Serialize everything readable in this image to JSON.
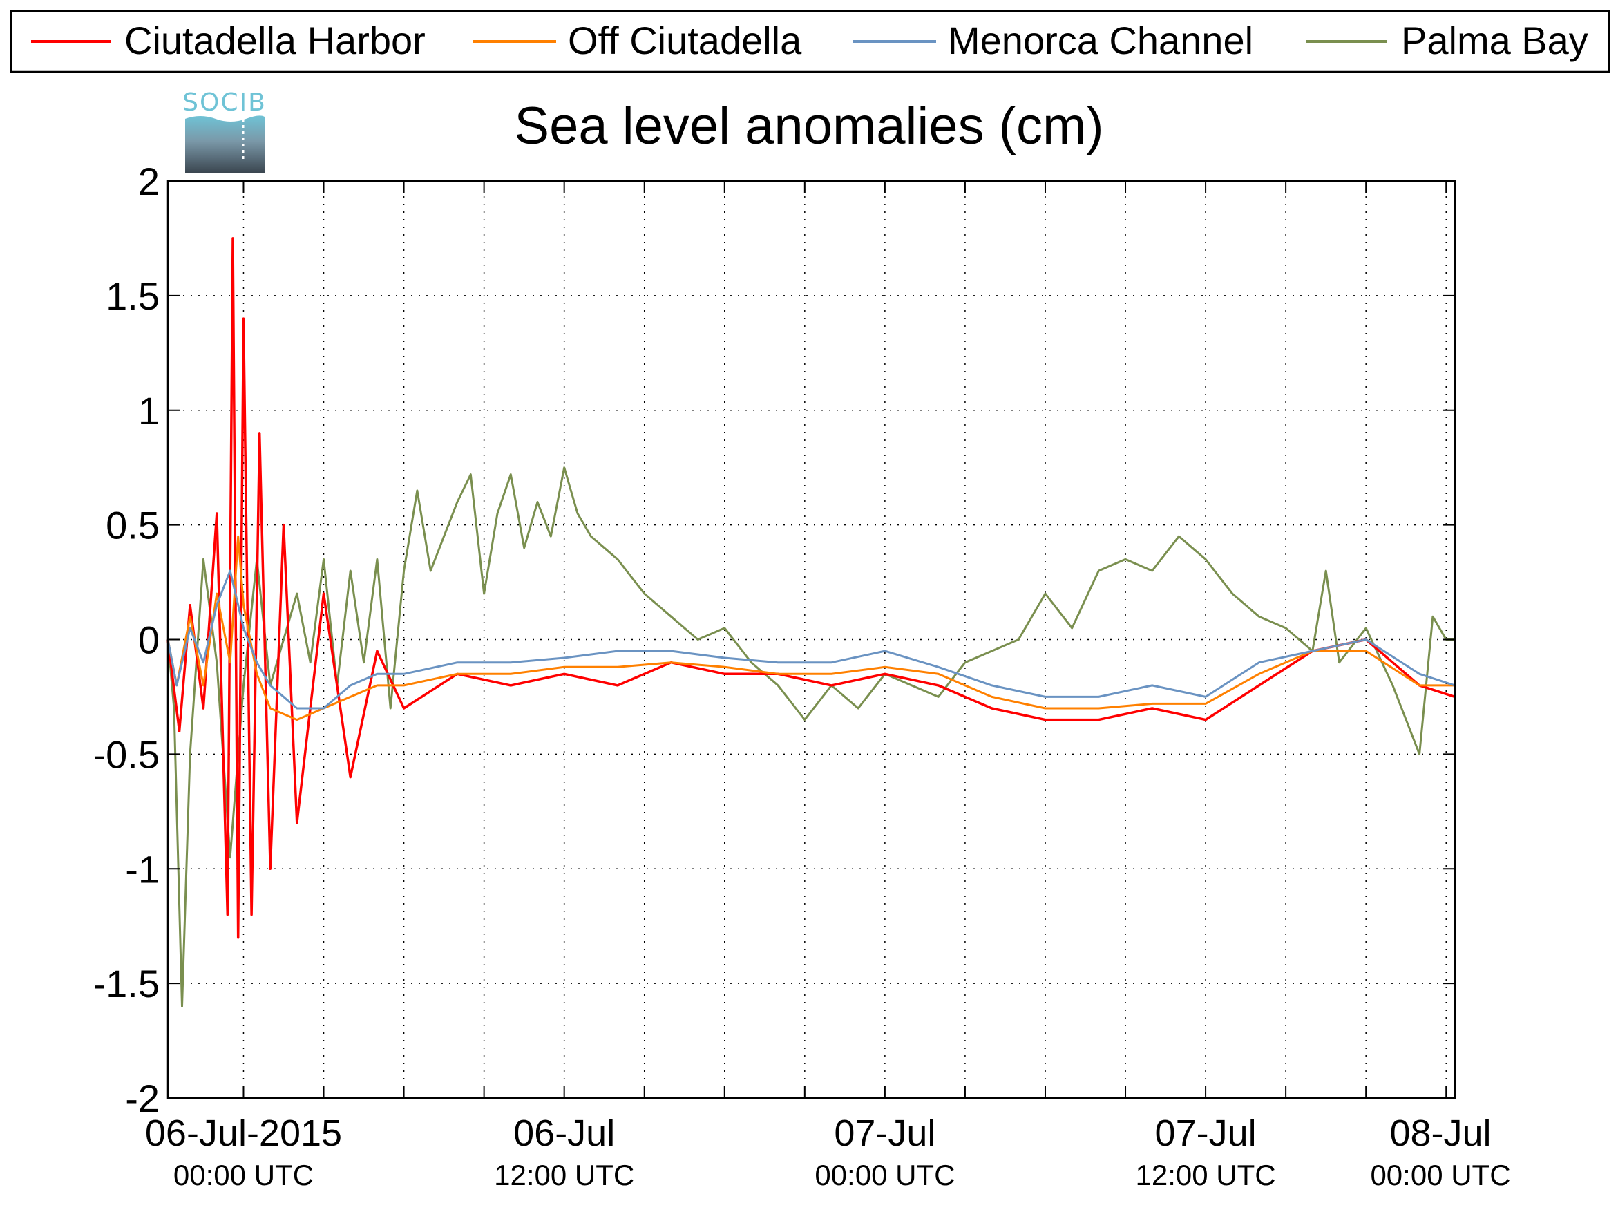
{
  "chart_data": {
    "type": "line",
    "title": "Sea level anomalies (cm)",
    "xlabel": "",
    "ylabel": "",
    "logo_text": "SOCIB",
    "x_unit": "hours since 06-Jul-2015 00:00 UTC",
    "xlim": [
      -2.83,
      45.33
    ],
    "ylim": [
      -2,
      2
    ],
    "grid": true,
    "legend_position": "top",
    "y_ticks": [
      2,
      1.5,
      1,
      0.5,
      0,
      -0.5,
      -1,
      -1.5,
      -2
    ],
    "y_tick_labels": [
      "2",
      "1.5",
      "1",
      "0.5",
      "0",
      "-0.5",
      "-1",
      "-1.5",
      "-2"
    ],
    "x_ticks_minor_hours": [
      0,
      3,
      6,
      9,
      12,
      15,
      18,
      21,
      24,
      27,
      30,
      33,
      36,
      39,
      42,
      45
    ],
    "x_tick_labels": [
      {
        "hour": 0,
        "line1": "06-Jul-2015",
        "line2": "00:00 UTC"
      },
      {
        "hour": 12,
        "line1": "06-Jul",
        "line2": "12:00 UTC"
      },
      {
        "hour": 24,
        "line1": "07-Jul",
        "line2": "00:00 UTC"
      },
      {
        "hour": 36,
        "line1": "07-Jul",
        "line2": "12:00 UTC"
      },
      {
        "hour": 48,
        "line1": "08-Jul",
        "line2": "00:00 UTC"
      }
    ],
    "series": [
      {
        "name": "Ciutadella Harbor",
        "color": "#ff0000",
        "points": [
          [
            -2.83,
            0
          ],
          [
            -2.4,
            -0.4
          ],
          [
            -2.0,
            0.15
          ],
          [
            -1.5,
            -0.3
          ],
          [
            -1.0,
            0.55
          ],
          [
            -0.6,
            -1.2
          ],
          [
            -0.4,
            1.75
          ],
          [
            -0.2,
            -1.3
          ],
          [
            0.0,
            1.4
          ],
          [
            0.3,
            -1.2
          ],
          [
            0.6,
            0.9
          ],
          [
            1.0,
            -1.0
          ],
          [
            1.5,
            0.5
          ],
          [
            2.0,
            -0.8
          ],
          [
            3.0,
            0.2
          ],
          [
            4.0,
            -0.6
          ],
          [
            5.0,
            -0.05
          ],
          [
            6.0,
            -0.3
          ],
          [
            8.0,
            -0.15
          ],
          [
            10.0,
            -0.2
          ],
          [
            12.0,
            -0.15
          ],
          [
            14.0,
            -0.2
          ],
          [
            16.0,
            -0.1
          ],
          [
            18.0,
            -0.15
          ],
          [
            20.0,
            -0.15
          ],
          [
            22.0,
            -0.2
          ],
          [
            24.0,
            -0.15
          ],
          [
            26.0,
            -0.2
          ],
          [
            28.0,
            -0.3
          ],
          [
            30.0,
            -0.35
          ],
          [
            32.0,
            -0.35
          ],
          [
            34.0,
            -0.3
          ],
          [
            36.0,
            -0.35
          ],
          [
            38.0,
            -0.2
          ],
          [
            40.0,
            -0.05
          ],
          [
            42.0,
            0.0
          ],
          [
            44.0,
            -0.2
          ],
          [
            45.33,
            -0.25
          ]
        ]
      },
      {
        "name": "Off Ciutadella",
        "color": "#ff8000",
        "points": [
          [
            -2.83,
            0
          ],
          [
            -2.5,
            -0.2
          ],
          [
            -2.0,
            0.1
          ],
          [
            -1.5,
            -0.2
          ],
          [
            -1.0,
            0.2
          ],
          [
            -0.5,
            -0.1
          ],
          [
            -0.2,
            0.45
          ],
          [
            0.0,
            0.15
          ],
          [
            0.5,
            -0.15
          ],
          [
            1.0,
            -0.3
          ],
          [
            2.0,
            -0.35
          ],
          [
            3.0,
            -0.3
          ],
          [
            4.0,
            -0.25
          ],
          [
            5.0,
            -0.2
          ],
          [
            6.0,
            -0.2
          ],
          [
            8.0,
            -0.15
          ],
          [
            10.0,
            -0.15
          ],
          [
            12.0,
            -0.12
          ],
          [
            14.0,
            -0.12
          ],
          [
            16.0,
            -0.1
          ],
          [
            18.0,
            -0.12
          ],
          [
            20.0,
            -0.15
          ],
          [
            22.0,
            -0.15
          ],
          [
            24.0,
            -0.12
          ],
          [
            26.0,
            -0.15
          ],
          [
            28.0,
            -0.25
          ],
          [
            30.0,
            -0.3
          ],
          [
            32.0,
            -0.3
          ],
          [
            34.0,
            -0.28
          ],
          [
            36.0,
            -0.28
          ],
          [
            38.0,
            -0.15
          ],
          [
            40.0,
            -0.05
          ],
          [
            42.0,
            -0.05
          ],
          [
            44.0,
            -0.2
          ],
          [
            45.33,
            -0.2
          ]
        ]
      },
      {
        "name": "Menorca Channel",
        "color": "#6a93c2",
        "points": [
          [
            -2.83,
            0
          ],
          [
            -2.5,
            -0.2
          ],
          [
            -2.0,
            0.05
          ],
          [
            -1.5,
            -0.1
          ],
          [
            -1.0,
            0.15
          ],
          [
            -0.5,
            0.3
          ],
          [
            0.0,
            0.05
          ],
          [
            0.5,
            -0.1
          ],
          [
            1.0,
            -0.2
          ],
          [
            2.0,
            -0.3
          ],
          [
            3.0,
            -0.3
          ],
          [
            4.0,
            -0.2
          ],
          [
            5.0,
            -0.15
          ],
          [
            6.0,
            -0.15
          ],
          [
            8.0,
            -0.1
          ],
          [
            10.0,
            -0.1
          ],
          [
            12.0,
            -0.08
          ],
          [
            14.0,
            -0.05
          ],
          [
            16.0,
            -0.05
          ],
          [
            18.0,
            -0.08
          ],
          [
            20.0,
            -0.1
          ],
          [
            22.0,
            -0.1
          ],
          [
            24.0,
            -0.05
          ],
          [
            26.0,
            -0.12
          ],
          [
            28.0,
            -0.2
          ],
          [
            30.0,
            -0.25
          ],
          [
            32.0,
            -0.25
          ],
          [
            34.0,
            -0.2
          ],
          [
            36.0,
            -0.25
          ],
          [
            38.0,
            -0.1
          ],
          [
            40.0,
            -0.05
          ],
          [
            42.0,
            0.0
          ],
          [
            44.0,
            -0.15
          ],
          [
            45.33,
            -0.2
          ]
        ]
      },
      {
        "name": "Palma Bay",
        "color": "#7a8f4f",
        "points": [
          [
            -2.83,
            0
          ],
          [
            -2.6,
            -0.3
          ],
          [
            -2.3,
            -1.6
          ],
          [
            -2.0,
            -0.5
          ],
          [
            -1.5,
            0.35
          ],
          [
            -1.0,
            -0.1
          ],
          [
            -0.5,
            -0.95
          ],
          [
            0.0,
            -0.2
          ],
          [
            0.5,
            0.35
          ],
          [
            1.0,
            -0.2
          ],
          [
            2.0,
            0.2
          ],
          [
            2.5,
            -0.1
          ],
          [
            3.0,
            0.35
          ],
          [
            3.5,
            -0.2
          ],
          [
            4.0,
            0.3
          ],
          [
            4.5,
            -0.1
          ],
          [
            5.0,
            0.35
          ],
          [
            5.5,
            -0.3
          ],
          [
            6.0,
            0.3
          ],
          [
            6.5,
            0.65
          ],
          [
            7.0,
            0.3
          ],
          [
            7.5,
            0.45
          ],
          [
            8.0,
            0.6
          ],
          [
            8.5,
            0.72
          ],
          [
            9.0,
            0.2
          ],
          [
            9.5,
            0.55
          ],
          [
            10.0,
            0.72
          ],
          [
            10.5,
            0.4
          ],
          [
            11.0,
            0.6
          ],
          [
            11.5,
            0.45
          ],
          [
            12.0,
            0.75
          ],
          [
            12.5,
            0.55
          ],
          [
            13.0,
            0.45
          ],
          [
            14.0,
            0.35
          ],
          [
            15.0,
            0.2
          ],
          [
            16.0,
            0.1
          ],
          [
            17.0,
            0.0
          ],
          [
            18.0,
            0.05
          ],
          [
            19.0,
            -0.1
          ],
          [
            20.0,
            -0.2
          ],
          [
            21.0,
            -0.35
          ],
          [
            22.0,
            -0.2
          ],
          [
            23.0,
            -0.3
          ],
          [
            24.0,
            -0.15
          ],
          [
            25.0,
            -0.2
          ],
          [
            26.0,
            -0.25
          ],
          [
            27.0,
            -0.1
          ],
          [
            28.0,
            -0.05
          ],
          [
            29.0,
            0.0
          ],
          [
            30.0,
            0.2
          ],
          [
            31.0,
            0.05
          ],
          [
            32.0,
            0.3
          ],
          [
            33.0,
            0.35
          ],
          [
            34.0,
            0.3
          ],
          [
            35.0,
            0.45
          ],
          [
            36.0,
            0.35
          ],
          [
            37.0,
            0.2
          ],
          [
            38.0,
            0.1
          ],
          [
            39.0,
            0.05
          ],
          [
            40.0,
            -0.05
          ],
          [
            40.5,
            0.3
          ],
          [
            41.0,
            -0.1
          ],
          [
            42.0,
            0.05
          ],
          [
            43.0,
            -0.2
          ],
          [
            44.0,
            -0.5
          ],
          [
            44.5,
            0.1
          ],
          [
            45.0,
            0.0
          ],
          [
            45.33,
            0.0
          ]
        ]
      }
    ]
  }
}
